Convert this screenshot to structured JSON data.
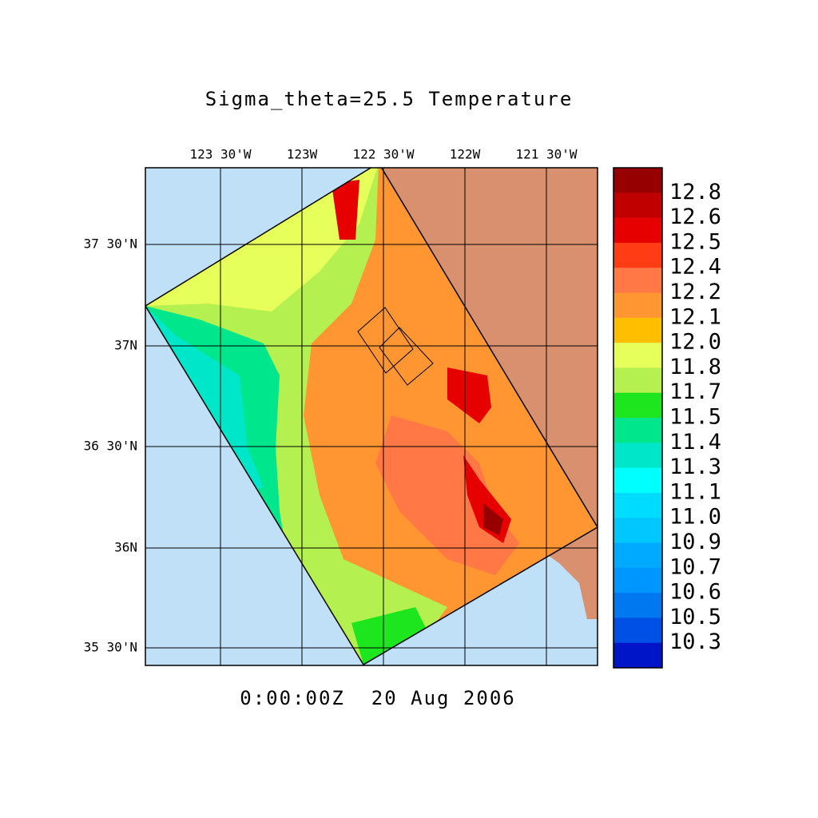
{
  "title": "Sigma_theta=25.5 Temperature",
  "map": {
    "lon_labels": [
      "123 30'W",
      "123W",
      "122 30'W",
      "122W",
      "121 30'W"
    ],
    "lat_labels": [
      "37 30'N",
      "37N",
      "36 30'N",
      "36N",
      "35 30'N"
    ]
  },
  "colorbar": {
    "labels": [
      "12.8",
      "12.6",
      "12.5",
      "12.4",
      "12.2",
      "12.1",
      "12.0",
      "11.8",
      "11.7",
      "11.5",
      "11.4",
      "11.3",
      "11.1",
      "11.0",
      "10.9",
      "10.7",
      "10.6",
      "10.5",
      "10.3"
    ],
    "colors": [
      "#960000",
      "#c00000",
      "#e60000",
      "#ff3c14",
      "#ff7846",
      "#ff9632",
      "#ffbe00",
      "#e6ff5a",
      "#b4f050",
      "#1ee61e",
      "#00e68c",
      "#00e6c8",
      "#00ffff",
      "#00dcff",
      "#00c8ff",
      "#00aaff",
      "#0096ff",
      "#0078f0",
      "#0050e6",
      "#0014c8"
    ]
  },
  "timestamp": "0:00:00Z  20 Aug 2006"
}
